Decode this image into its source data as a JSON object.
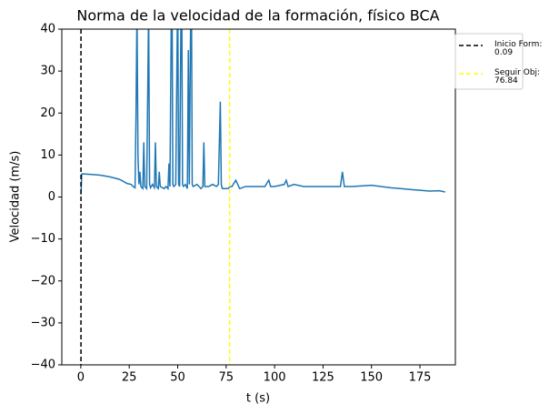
{
  "chart_data": {
    "type": "line",
    "title": "Norma de la velocidad de la formación, físico BCA",
    "xlabel": "t (s)",
    "ylabel": "Velocidad (m/s)",
    "xlim": [
      -9.8,
      193.3
    ],
    "ylim": [
      -40,
      40
    ],
    "xticks": [
      0,
      25,
      50,
      75,
      100,
      125,
      150,
      175
    ],
    "yticks": [
      {
        "value": -40,
        "label": "−40"
      },
      {
        "value": -30,
        "label": "−30"
      },
      {
        "value": -20,
        "label": "−20"
      },
      {
        "value": -10,
        "label": "−10"
      },
      0,
      10,
      20,
      30,
      40
    ],
    "x": [
      0.09,
      0.5,
      1,
      5,
      10,
      15,
      20,
      24,
      26,
      27,
      28,
      28.5,
      29,
      29.5,
      30,
      30.5,
      31,
      32,
      32.5,
      33,
      34,
      35,
      35.5,
      36,
      37,
      38,
      38.5,
      39,
      40,
      40.5,
      41,
      43,
      44,
      45,
      45.5,
      46,
      47,
      47.5,
      48,
      49,
      50,
      50.5,
      51,
      52,
      52.5,
      53,
      54,
      55,
      55.5,
      56,
      57,
      57.5,
      58,
      60,
      62,
      63,
      63.5,
      64,
      66,
      68,
      70,
      71,
      72,
      72.5,
      73,
      75,
      76,
      77,
      78,
      80,
      82,
      85,
      90,
      95,
      97,
      98,
      100,
      105,
      106,
      107,
      110,
      115,
      120,
      125,
      130,
      134,
      135,
      136,
      140,
      150,
      160,
      165,
      170,
      175,
      180,
      185,
      188
    ],
    "series": [
      {
        "color": "#1f77b4",
        "values": [
          0.5,
          5.5,
          5.5,
          5.4,
          5.2,
          4.8,
          4.2,
          3.2,
          3,
          2.5,
          2.2,
          20,
          45,
          10,
          3,
          6,
          2.5,
          2,
          13,
          2.5,
          2,
          45,
          3,
          2.2,
          3,
          2.2,
          13,
          2.5,
          2,
          6,
          2.5,
          2,
          2.5,
          2,
          8,
          2.5,
          60,
          3,
          2.5,
          3,
          50,
          3,
          2.5,
          60,
          3,
          2.5,
          3,
          2,
          35,
          3,
          60,
          3,
          2.5,
          3,
          2,
          2.5,
          13,
          2.5,
          2.5,
          3,
          2.5,
          3,
          22.7,
          3,
          2,
          2,
          2,
          2.5,
          2.5,
          4,
          2,
          2.5,
          2.5,
          2.5,
          4,
          2.5,
          2.5,
          3,
          4,
          2.5,
          3,
          2.5,
          2.5,
          2.5,
          2.5,
          2.5,
          6,
          2.5,
          2.5,
          2.8,
          2.2,
          2,
          1.8,
          1.6,
          1.4,
          1.5,
          1.2
        ]
      }
    ],
    "vlines": [
      {
        "name": "Inicio Form:\n0.09",
        "x": 0.09,
        "color": "#000000"
      },
      {
        "name": "Seguir Obj:\n76.84",
        "x": 76.84,
        "color": "#ffff00"
      }
    ]
  }
}
